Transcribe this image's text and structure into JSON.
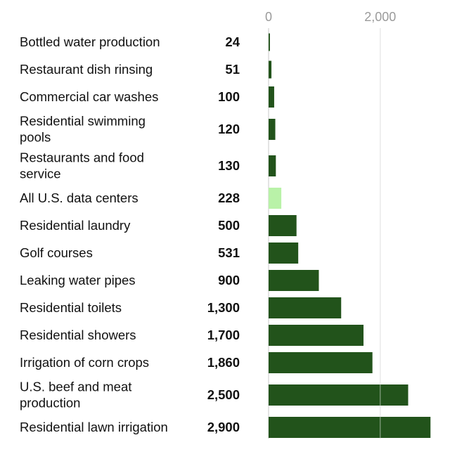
{
  "chart_data": {
    "type": "bar",
    "orientation": "horizontal",
    "title": "",
    "xlabel": "",
    "ylabel": "",
    "xlim": [
      0,
      2900
    ],
    "x_ticks": [
      {
        "value": 0,
        "label": "0"
      },
      {
        "value": 2000,
        "label": "2,000"
      }
    ],
    "grid": true,
    "legend": "none",
    "colors": {
      "bar": "#22531b",
      "highlight": "#b9f2a8",
      "gridline": "#c8c8c8",
      "tick_text": "#9a9a9a",
      "text": "#111111"
    },
    "categories": [
      [
        "Bottled water production"
      ],
      [
        "Restaurant dish rinsing"
      ],
      [
        "Commercial car washes"
      ],
      [
        "Residential swimming",
        "pools"
      ],
      [
        "Restaurants and food",
        "service"
      ],
      [
        "All U.S. data centers"
      ],
      [
        "Residential laundry"
      ],
      [
        "Golf courses"
      ],
      [
        "Leaking water pipes"
      ],
      [
        "Residential toilets"
      ],
      [
        "Residential showers"
      ],
      [
        "Irrigation of corn crops"
      ],
      [
        "U.S. beef and meat",
        "production"
      ],
      [
        "Residential lawn irrigation"
      ]
    ],
    "values": [
      24,
      51,
      100,
      120,
      130,
      228,
      500,
      531,
      900,
      1300,
      1700,
      1860,
      2500,
      2900
    ],
    "value_labels": [
      "24",
      "51",
      "100",
      "120",
      "130",
      "228",
      "500",
      "531",
      "900",
      "1,300",
      "1,700",
      "1,860",
      "2,500",
      "2,900"
    ],
    "highlighted": [
      "All U.S. data centers"
    ]
  }
}
